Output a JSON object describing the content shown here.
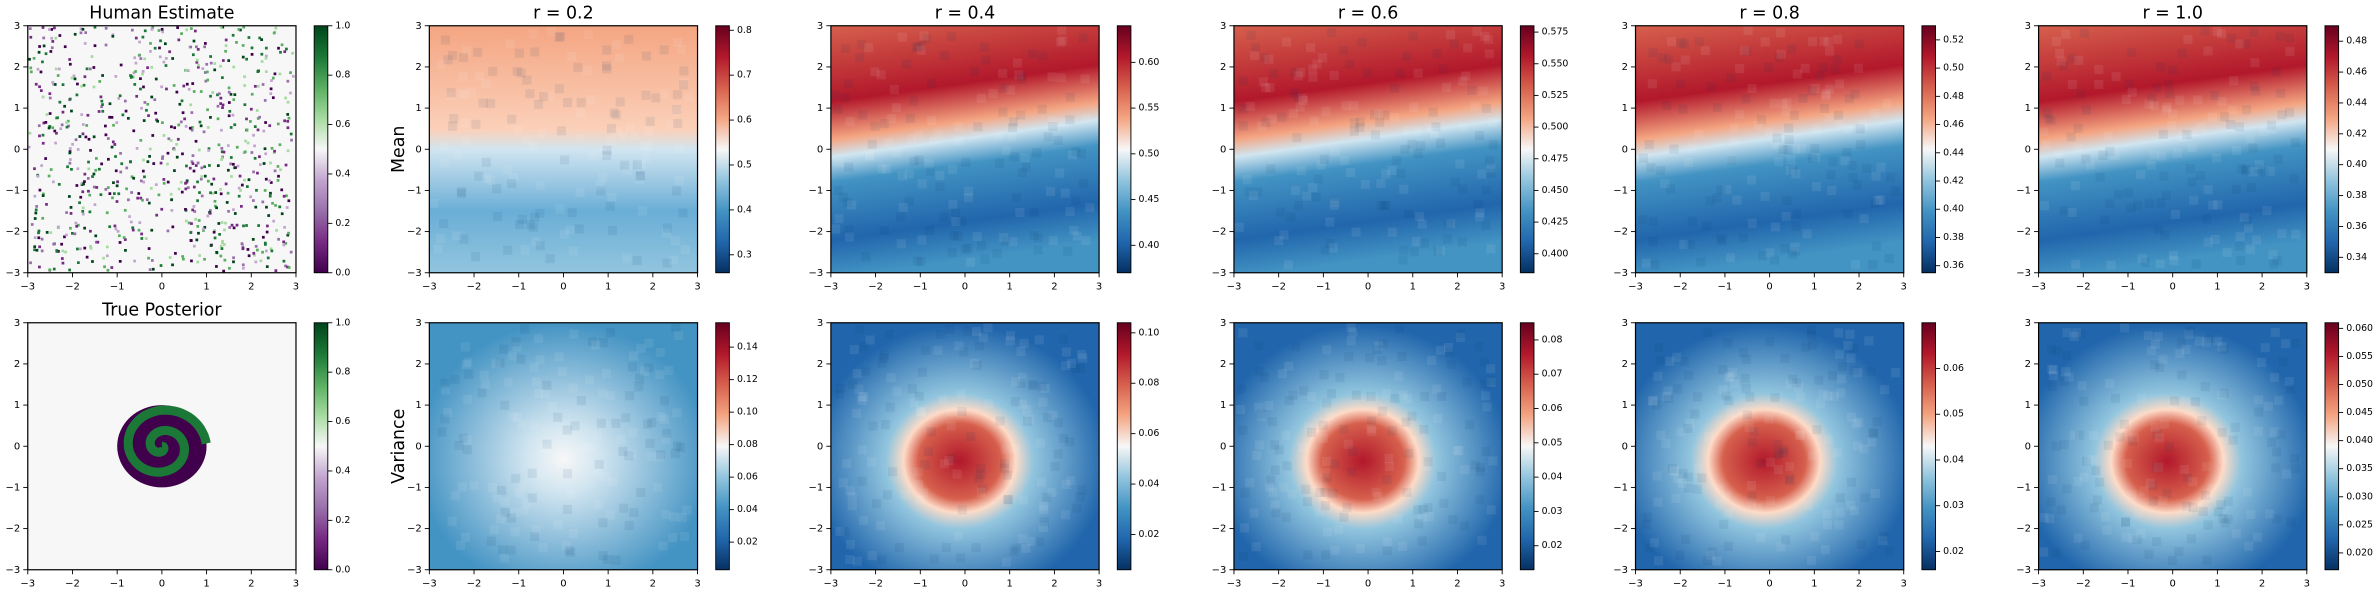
{
  "chart_data": [
    {
      "type": "heatmap",
      "title": "Human Estimate",
      "xlim": [
        -3,
        3
      ],
      "ylim": [
        -3,
        3
      ],
      "xticks": [
        {
          "value": -3,
          "label": "−3"
        },
        {
          "value": -2,
          "label": "−2"
        },
        {
          "value": -1,
          "label": "−1"
        },
        0,
        1,
        2,
        3
      ],
      "yticks": [
        {
          "value": -3,
          "label": "−3"
        },
        {
          "value": -2,
          "label": "−2"
        },
        {
          "value": -1,
          "label": "−1"
        },
        0,
        1,
        2,
        3
      ],
      "colorbar": {
        "lim": [
          0,
          1
        ],
        "ticks": [
          {
            "value": 0,
            "label": "0.0"
          },
          0.2,
          0.4,
          0.6,
          0.8,
          {
            "value": 1,
            "label": "1.0"
          }
        ],
        "colors": [
          "#40004b",
          "#762a83",
          "#9970ab",
          "#c2a5cf",
          "#f7f7f7",
          "#a6dba0",
          "#5aae61",
          "#1b7837",
          "#00441b"
        ]
      }
    },
    {
      "type": "heatmap",
      "title": "r = 0.2",
      "ylabel": "Mean",
      "xlim": [
        -3,
        3
      ],
      "ylim": [
        -3,
        3
      ],
      "xticks": [
        {
          "value": -3,
          "label": "−3"
        },
        {
          "value": -2,
          "label": "−2"
        },
        {
          "value": -1,
          "label": "−1"
        },
        0,
        1,
        2,
        3
      ],
      "yticks": [
        {
          "value": -3,
          "label": "−3"
        },
        {
          "value": -2,
          "label": "−2"
        },
        {
          "value": -1,
          "label": "−1"
        },
        0,
        1,
        2,
        3
      ],
      "colorbar": {
        "lim": [
          0.26,
          0.81
        ],
        "ticks": [
          0.3,
          0.4,
          0.5,
          0.6,
          0.7,
          0.8
        ],
        "colors": [
          "#053061",
          "#2166ac",
          "#4393c3",
          "#92c5de",
          "#f7f7f7",
          "#f4a582",
          "#d6604d",
          "#b2182b",
          "#67001f"
        ]
      }
    },
    {
      "type": "heatmap",
      "title": "r = 0.4",
      "xlim": [
        -3,
        3
      ],
      "ylim": [
        -3,
        3
      ],
      "xticks": [
        {
          "value": -3,
          "label": "−3"
        },
        {
          "value": -2,
          "label": "−2"
        },
        {
          "value": -1,
          "label": "−1"
        },
        0,
        1,
        2,
        3
      ],
      "yticks": [
        {
          "value": -3,
          "label": "−3"
        },
        {
          "value": -2,
          "label": "−2"
        },
        {
          "value": -1,
          "label": "−1"
        },
        0,
        1,
        2,
        3
      ],
      "colorbar": {
        "lim": [
          0.37,
          0.64
        ],
        "ticks": [
          {
            "value": 0.4,
            "label": "0.40"
          },
          0.45,
          {
            "value": 0.5,
            "label": "0.50"
          },
          0.55,
          {
            "value": 0.6,
            "label": "0.60"
          }
        ],
        "colors": [
          "#053061",
          "#2166ac",
          "#4393c3",
          "#92c5de",
          "#f7f7f7",
          "#f4a582",
          "#d6604d",
          "#b2182b",
          "#67001f"
        ]
      }
    },
    {
      "type": "heatmap",
      "title": "r = 0.6",
      "xlim": [
        -3,
        3
      ],
      "ylim": [
        -3,
        3
      ],
      "xticks": [
        {
          "value": -3,
          "label": "−3"
        },
        {
          "value": -2,
          "label": "−2"
        },
        {
          "value": -1,
          "label": "−1"
        },
        0,
        1,
        2,
        3
      ],
      "yticks": [
        {
          "value": -3,
          "label": "−3"
        },
        {
          "value": -2,
          "label": "−2"
        },
        {
          "value": -1,
          "label": "−1"
        },
        0,
        1,
        2,
        3
      ],
      "colorbar": {
        "lim": [
          0.385,
          0.58
        ],
        "ticks": [
          {
            "value": 0.4,
            "label": "0.400"
          },
          0.425,
          {
            "value": 0.45,
            "label": "0.450"
          },
          0.475,
          {
            "value": 0.5,
            "label": "0.500"
          },
          0.525,
          {
            "value": 0.55,
            "label": "0.550"
          },
          0.575
        ],
        "colors": [
          "#053061",
          "#2166ac",
          "#4393c3",
          "#92c5de",
          "#f7f7f7",
          "#f4a582",
          "#d6604d",
          "#b2182b",
          "#67001f"
        ]
      }
    },
    {
      "type": "heatmap",
      "title": "r = 0.8",
      "xlim": [
        -3,
        3
      ],
      "ylim": [
        -3,
        3
      ],
      "xticks": [
        {
          "value": -3,
          "label": "−3"
        },
        {
          "value": -2,
          "label": "−2"
        },
        {
          "value": -1,
          "label": "−1"
        },
        0,
        1,
        2,
        3
      ],
      "yticks": [
        {
          "value": -3,
          "label": "−3"
        },
        {
          "value": -2,
          "label": "−2"
        },
        {
          "value": -1,
          "label": "−1"
        },
        0,
        1,
        2,
        3
      ],
      "colorbar": {
        "lim": [
          0.355,
          0.53
        ],
        "ticks": [
          0.36,
          0.38,
          {
            "value": 0.4,
            "label": "0.40"
          },
          0.42,
          0.44,
          0.46,
          0.48,
          {
            "value": 0.5,
            "label": "0.50"
          },
          0.52
        ],
        "colors": [
          "#053061",
          "#2166ac",
          "#4393c3",
          "#92c5de",
          "#f7f7f7",
          "#f4a582",
          "#d6604d",
          "#b2182b",
          "#67001f"
        ]
      }
    },
    {
      "type": "heatmap",
      "title": "r = 1.0",
      "xlim": [
        -3,
        3
      ],
      "ylim": [
        -3,
        3
      ],
      "xticks": [
        {
          "value": -3,
          "label": "−3"
        },
        {
          "value": -2,
          "label": "−2"
        },
        {
          "value": -1,
          "label": "−1"
        },
        0,
        1,
        2,
        3
      ],
      "yticks": [
        {
          "value": -3,
          "label": "−3"
        },
        {
          "value": -2,
          "label": "−2"
        },
        {
          "value": -1,
          "label": "−1"
        },
        0,
        1,
        2,
        3
      ],
      "colorbar": {
        "lim": [
          0.33,
          0.49
        ],
        "ticks": [
          0.34,
          0.36,
          0.38,
          {
            "value": 0.4,
            "label": "0.40"
          },
          0.42,
          0.44,
          0.46,
          0.48
        ],
        "colors": [
          "#053061",
          "#2166ac",
          "#4393c3",
          "#92c5de",
          "#f7f7f7",
          "#f4a582",
          "#d6604d",
          "#b2182b",
          "#67001f"
        ]
      }
    },
    {
      "type": "heatmap",
      "title": "True Posterior",
      "xlim": [
        -3,
        3
      ],
      "ylim": [
        -3,
        3
      ],
      "xticks": [
        {
          "value": -3,
          "label": "−3"
        },
        {
          "value": -2,
          "label": "−2"
        },
        {
          "value": -1,
          "label": "−1"
        },
        0,
        1,
        2,
        3
      ],
      "yticks": [
        {
          "value": -3,
          "label": "−3"
        },
        {
          "value": -2,
          "label": "−2"
        },
        {
          "value": -1,
          "label": "−1"
        },
        0,
        1,
        2,
        3
      ],
      "colorbar": {
        "lim": [
          0,
          1
        ],
        "ticks": [
          {
            "value": 0,
            "label": "0.0"
          },
          0.2,
          0.4,
          0.6,
          0.8,
          {
            "value": 1,
            "label": "1.0"
          }
        ],
        "colors": [
          "#40004b",
          "#762a83",
          "#9970ab",
          "#c2a5cf",
          "#f7f7f7",
          "#a6dba0",
          "#5aae61",
          "#1b7837",
          "#00441b"
        ]
      }
    },
    {
      "type": "heatmap",
      "ylabel": "Variance",
      "xlim": [
        -3,
        3
      ],
      "ylim": [
        -3,
        3
      ],
      "xticks": [
        {
          "value": -3,
          "label": "−3"
        },
        {
          "value": -2,
          "label": "−2"
        },
        {
          "value": -1,
          "label": "−1"
        },
        0,
        1,
        2,
        3
      ],
      "yticks": [
        {
          "value": -3,
          "label": "−3"
        },
        {
          "value": -2,
          "label": "−2"
        },
        {
          "value": -1,
          "label": "−1"
        },
        0,
        1,
        2,
        3
      ],
      "colorbar": {
        "lim": [
          0.003,
          0.155
        ],
        "ticks": [
          0.02,
          0.04,
          0.06,
          0.08,
          {
            "value": 0.1,
            "label": "0.10"
          },
          0.12,
          0.14
        ],
        "colors": [
          "#053061",
          "#2166ac",
          "#4393c3",
          "#92c5de",
          "#f7f7f7",
          "#f4a582",
          "#d6604d",
          "#b2182b",
          "#67001f"
        ]
      }
    },
    {
      "type": "heatmap",
      "xlim": [
        -3,
        3
      ],
      "ylim": [
        -3,
        3
      ],
      "xticks": [
        {
          "value": -3,
          "label": "−3"
        },
        {
          "value": -2,
          "label": "−2"
        },
        {
          "value": -1,
          "label": "−1"
        },
        0,
        1,
        2,
        3
      ],
      "yticks": [
        {
          "value": -3,
          "label": "−3"
        },
        {
          "value": -2,
          "label": "−2"
        },
        {
          "value": -1,
          "label": "−1"
        },
        0,
        1,
        2,
        3
      ],
      "colorbar": {
        "lim": [
          0.006,
          0.104
        ],
        "ticks": [
          0.02,
          0.04,
          0.06,
          0.08,
          {
            "value": 0.1,
            "label": "0.10"
          }
        ],
        "colors": [
          "#053061",
          "#2166ac",
          "#4393c3",
          "#92c5de",
          "#f7f7f7",
          "#f4a582",
          "#d6604d",
          "#b2182b",
          "#67001f"
        ]
      }
    },
    {
      "type": "heatmap",
      "xlim": [
        -3,
        3
      ],
      "ylim": [
        -3,
        3
      ],
      "xticks": [
        {
          "value": -3,
          "label": "−3"
        },
        {
          "value": -2,
          "label": "−2"
        },
        {
          "value": -1,
          "label": "−1"
        },
        0,
        1,
        2,
        3
      ],
      "yticks": [
        {
          "value": -3,
          "label": "−3"
        },
        {
          "value": -2,
          "label": "−2"
        },
        {
          "value": -1,
          "label": "−1"
        },
        0,
        1,
        2,
        3
      ],
      "colorbar": {
        "lim": [
          0.013,
          0.085
        ],
        "ticks": [
          0.02,
          0.03,
          0.04,
          0.05,
          0.06,
          0.07,
          0.08
        ],
        "colors": [
          "#053061",
          "#2166ac",
          "#4393c3",
          "#92c5de",
          "#f7f7f7",
          "#f4a582",
          "#d6604d",
          "#b2182b",
          "#67001f"
        ]
      }
    },
    {
      "type": "heatmap",
      "xlim": [
        -3,
        3
      ],
      "ylim": [
        -3,
        3
      ],
      "xticks": [
        {
          "value": -3,
          "label": "−3"
        },
        {
          "value": -2,
          "label": "−2"
        },
        {
          "value": -1,
          "label": "−1"
        },
        0,
        1,
        2,
        3
      ],
      "yticks": [
        {
          "value": -3,
          "label": "−3"
        },
        {
          "value": -2,
          "label": "−2"
        },
        {
          "value": -1,
          "label": "−1"
        },
        0,
        1,
        2,
        3
      ],
      "colorbar": {
        "lim": [
          0.016,
          0.07
        ],
        "ticks": [
          0.02,
          0.03,
          0.04,
          0.05,
          0.06
        ],
        "colors": [
          "#053061",
          "#2166ac",
          "#4393c3",
          "#92c5de",
          "#f7f7f7",
          "#f4a582",
          "#d6604d",
          "#b2182b",
          "#67001f"
        ]
      }
    },
    {
      "type": "heatmap",
      "xlim": [
        -3,
        3
      ],
      "ylim": [
        -3,
        3
      ],
      "xticks": [
        {
          "value": -3,
          "label": "−3"
        },
        {
          "value": -2,
          "label": "−2"
        },
        {
          "value": -1,
          "label": "−1"
        },
        0,
        1,
        2,
        3
      ],
      "yticks": [
        {
          "value": -3,
          "label": "−3"
        },
        {
          "value": -2,
          "label": "−2"
        },
        {
          "value": -1,
          "label": "−1"
        },
        0,
        1,
        2,
        3
      ],
      "colorbar": {
        "lim": [
          0.017,
          0.061
        ],
        "ticks": [
          {
            "value": 0.02,
            "label": "0.020"
          },
          0.025,
          {
            "value": 0.03,
            "label": "0.030"
          },
          0.035,
          {
            "value": 0.04,
            "label": "0.040"
          },
          0.045,
          {
            "value": 0.05,
            "label": "0.050"
          },
          0.055,
          {
            "value": 0.06,
            "label": "0.060"
          }
        ],
        "colors": [
          "#053061",
          "#2166ac",
          "#4393c3",
          "#92c5de",
          "#f7f7f7",
          "#f4a582",
          "#d6604d",
          "#b2182b",
          "#67001f"
        ]
      }
    }
  ]
}
